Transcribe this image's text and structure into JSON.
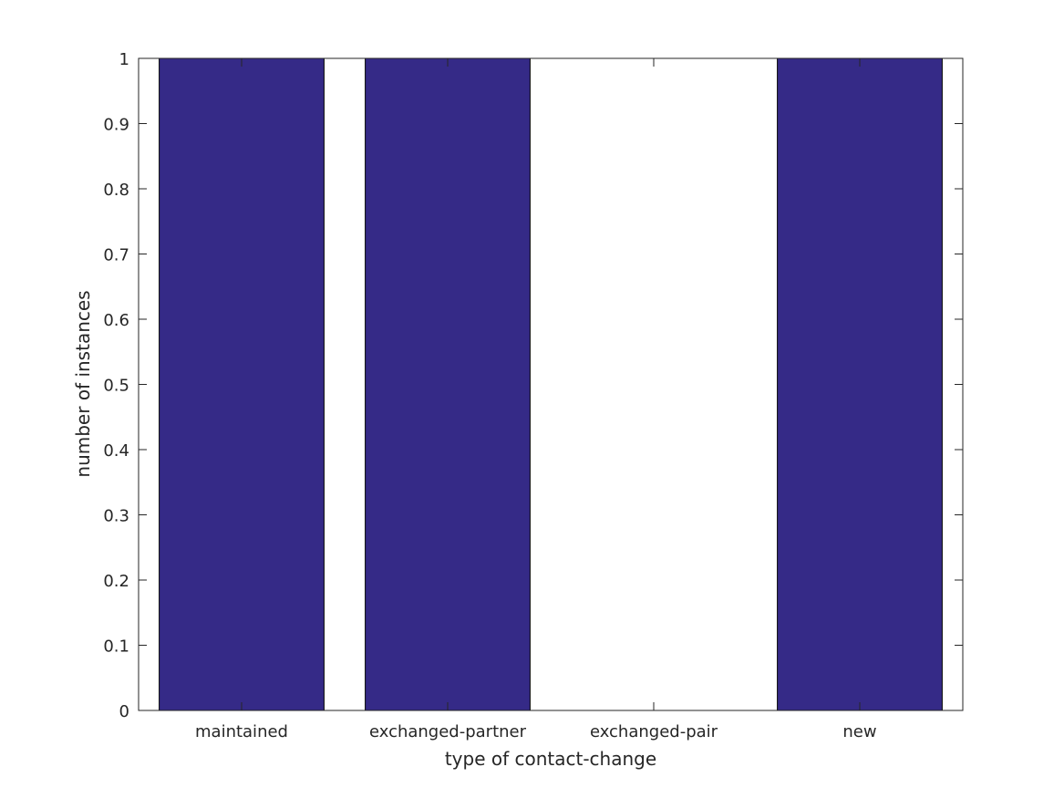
{
  "chart_data": {
    "type": "bar",
    "title": "",
    "xlabel": "type of contact-change",
    "ylabel": "number of instances",
    "categories": [
      "maintained",
      "exchanged-partner",
      "exchanged-pair",
      "new"
    ],
    "values": [
      1,
      1,
      0,
      1
    ],
    "ylim": [
      0,
      1
    ],
    "yticks": [
      0,
      0.1,
      0.2,
      0.3,
      0.4,
      0.5,
      0.6,
      0.7,
      0.8,
      0.9,
      1
    ],
    "ytick_labels": [
      "0",
      "0.1",
      "0.2",
      "0.3",
      "0.4",
      "0.5",
      "0.6",
      "0.7",
      "0.8",
      "0.9",
      "1"
    ],
    "grid": false,
    "bar_color": "#352a87",
    "axis_color": "#262626"
  }
}
